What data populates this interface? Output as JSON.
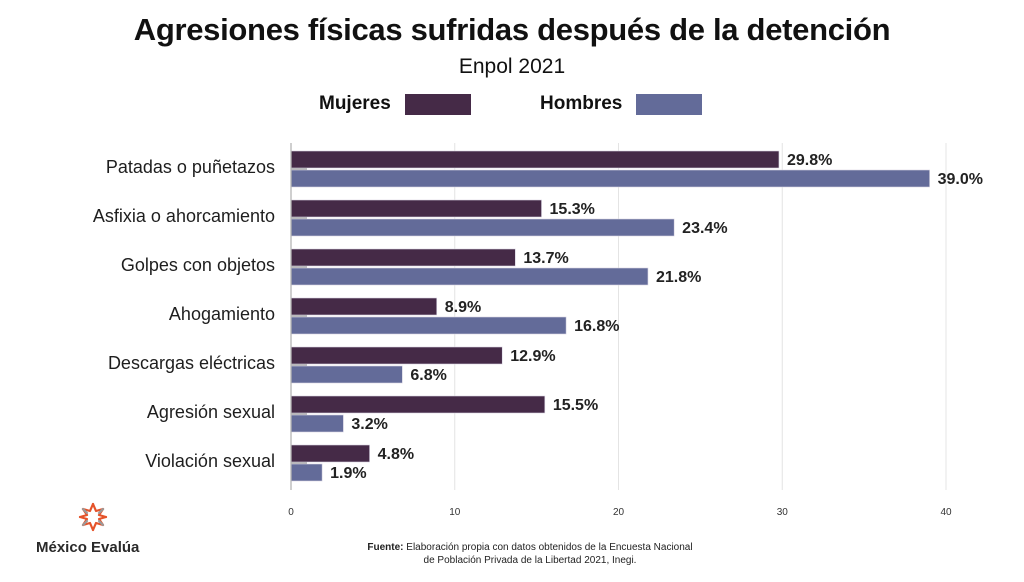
{
  "chart_data": {
    "type": "bar",
    "orientation": "horizontal",
    "title": "Agresiones físicas sufridas después de la detención",
    "subtitle": "Enpol 2021",
    "categories": [
      "Patadas o puñetazos",
      "Asfixia o ahorcamiento",
      "Golpes con objetos",
      "Ahogamiento",
      "Descargas eléctricas",
      "Agresión sexual",
      "Violación sexual"
    ],
    "series": [
      {
        "name": "Mujeres",
        "color": "#452a47",
        "values": [
          29.8,
          15.3,
          13.7,
          8.9,
          12.9,
          15.5,
          4.8
        ],
        "labels": [
          "29.8%",
          "15.3%",
          "13.7%",
          "8.9%",
          "12.9%",
          "15.5%",
          "4.8%"
        ]
      },
      {
        "name": "Hombres",
        "color": "#636b99",
        "values": [
          39.0,
          23.4,
          21.8,
          16.8,
          6.8,
          3.2,
          1.9
        ],
        "labels": [
          "39.0%",
          "23.4%",
          "21.8%",
          "16.8%",
          "6.8%",
          "3.2%",
          "1.9%"
        ]
      }
    ],
    "xlim": [
      0,
      40
    ],
    "xticks": [
      "0",
      "10",
      "20",
      "30",
      "40"
    ],
    "xtick_values": [
      0,
      10,
      20,
      30,
      40
    ],
    "xlabel": "",
    "ylabel": "",
    "grid": true,
    "legend_position": "top-center"
  },
  "legend": {
    "items": [
      {
        "label": "Mujeres",
        "color": "#452a47"
      },
      {
        "label": "Hombres",
        "color": "#636b99"
      }
    ]
  },
  "footer": {
    "logo_text": "México Evalúa",
    "logo_icon": "star-burst-icon",
    "source_label": "Fuente:",
    "source_line1": "Elaboración propia con datos obtenidos de la Encuesta Nacional",
    "source_line2": "de Población Privada de la Libertad 2021, Inegi."
  }
}
